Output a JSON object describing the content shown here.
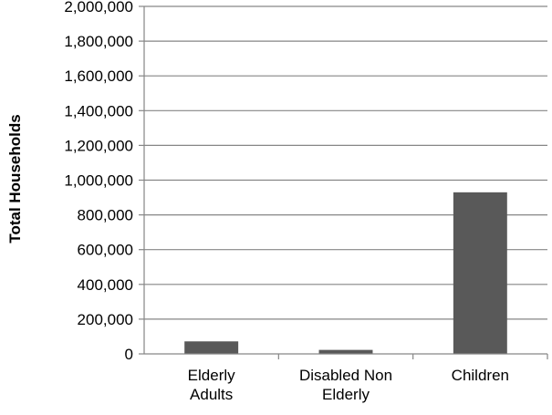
{
  "chart_data": {
    "type": "bar",
    "title": "",
    "xlabel": "",
    "ylabel": "Total Households",
    "categories": [
      [
        "Elderly",
        "Adults"
      ],
      [
        "Disabled Non",
        "Elderly"
      ],
      [
        "Children"
      ]
    ],
    "values": [
      72000,
      23000,
      930000
    ],
    "ylim": [
      0,
      2000000
    ],
    "yticks": [
      0,
      200000,
      400000,
      600000,
      800000,
      1000000,
      1200000,
      1400000,
      1600000,
      1800000,
      2000000
    ],
    "ytick_labels": [
      "0",
      "200,000",
      "400,000",
      "600,000",
      "800,000",
      "1,000,000",
      "1,200,000",
      "1,400,000",
      "1,600,000",
      "1,800,000",
      "2,000,000"
    ],
    "grid": true,
    "legend": "none",
    "colors": {
      "bar": "#595959",
      "grid": "#868686",
      "axis": "#868686"
    }
  }
}
